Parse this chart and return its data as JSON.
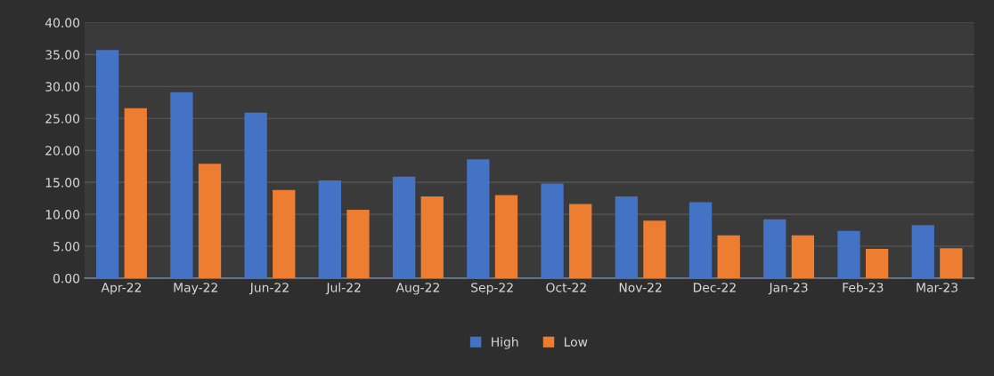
{
  "chart_data": {
    "type": "bar",
    "categories": [
      "Apr-22",
      "May-22",
      "Jun-22",
      "Jul-22",
      "Aug-22",
      "Sep-22",
      "Oct-22",
      "Nov-22",
      "Dec-22",
      "Jan-23",
      "Feb-23",
      "Mar-23"
    ],
    "series": [
      {
        "name": "High",
        "color": "#4472c4",
        "values": [
          35.7,
          29.1,
          25.9,
          15.3,
          15.9,
          18.6,
          14.8,
          12.8,
          11.9,
          9.2,
          7.4,
          8.3
        ]
      },
      {
        "name": "Low",
        "color": "#ed7d31",
        "values": [
          26.6,
          17.9,
          13.8,
          10.7,
          12.8,
          13.0,
          11.6,
          9.0,
          6.7,
          6.7,
          4.6,
          4.7
        ]
      }
    ],
    "ylim": [
      0,
      40
    ],
    "yticks": [
      {
        "value": 0,
        "label": "0.00"
      },
      {
        "value": 5,
        "label": "5.00"
      },
      {
        "value": 10,
        "label": "10.00"
      },
      {
        "value": 15,
        "label": "15.00"
      },
      {
        "value": 20,
        "label": "20.00"
      },
      {
        "value": 25,
        "label": "25.00"
      },
      {
        "value": 30,
        "label": "30.00"
      },
      {
        "value": 35,
        "label": "35.00"
      },
      {
        "value": 40,
        "label": "40.00"
      }
    ],
    "grid": "y",
    "legend": "bottom"
  }
}
